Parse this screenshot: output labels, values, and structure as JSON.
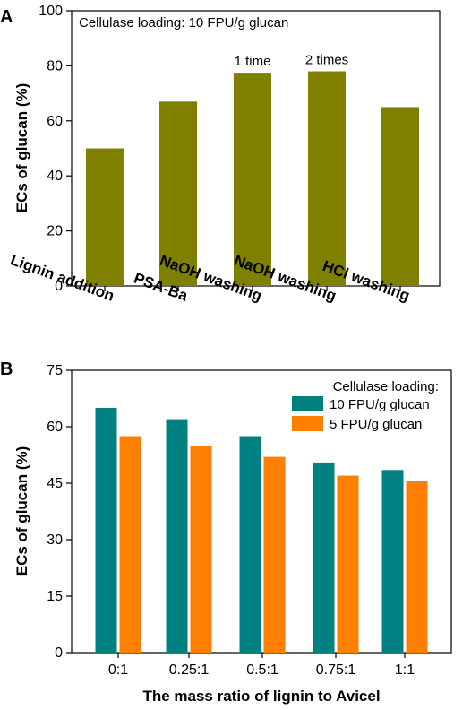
{
  "chart_data": [
    {
      "panel": "A",
      "type": "bar",
      "annotation": "Cellulase loading: 10 FPU/g glucan",
      "ylabel": "ECs of glucan (%)",
      "xlabel": "",
      "ylim": [
        0,
        100
      ],
      "yticks": [
        0,
        20,
        40,
        60,
        80,
        100
      ],
      "grid": false,
      "color": "#808000",
      "categories": [
        "Lignin addition",
        "PSA-Ba",
        "NaOH washing",
        "NaOH washing",
        "HCl washing"
      ],
      "values": [
        50,
        67,
        77.5,
        78,
        65
      ],
      "bar_labels": [
        "",
        "",
        "1 time",
        "2 times",
        ""
      ]
    },
    {
      "panel": "B",
      "type": "bar",
      "ylabel": "ECs of glucan (%)",
      "xlabel": "The mass ratio of lignin to Avicel",
      "ylim": [
        0,
        75
      ],
      "yticks": [
        0,
        15,
        30,
        45,
        60,
        75
      ],
      "grid": false,
      "legend_title": "Cellulase loading:",
      "legend_position": "top-right",
      "categories": [
        "0:1",
        "0.25:1",
        "0.5:1",
        "0.75:1",
        "1:1"
      ],
      "series": [
        {
          "name": "10 FPU/g glucan",
          "color": "#008080",
          "values": [
            65,
            62,
            57.5,
            50.5,
            48.5
          ]
        },
        {
          "name": "5 FPU/g glucan",
          "color": "#FF8000",
          "values": [
            57.5,
            55,
            52,
            47,
            45.5
          ]
        }
      ]
    }
  ]
}
